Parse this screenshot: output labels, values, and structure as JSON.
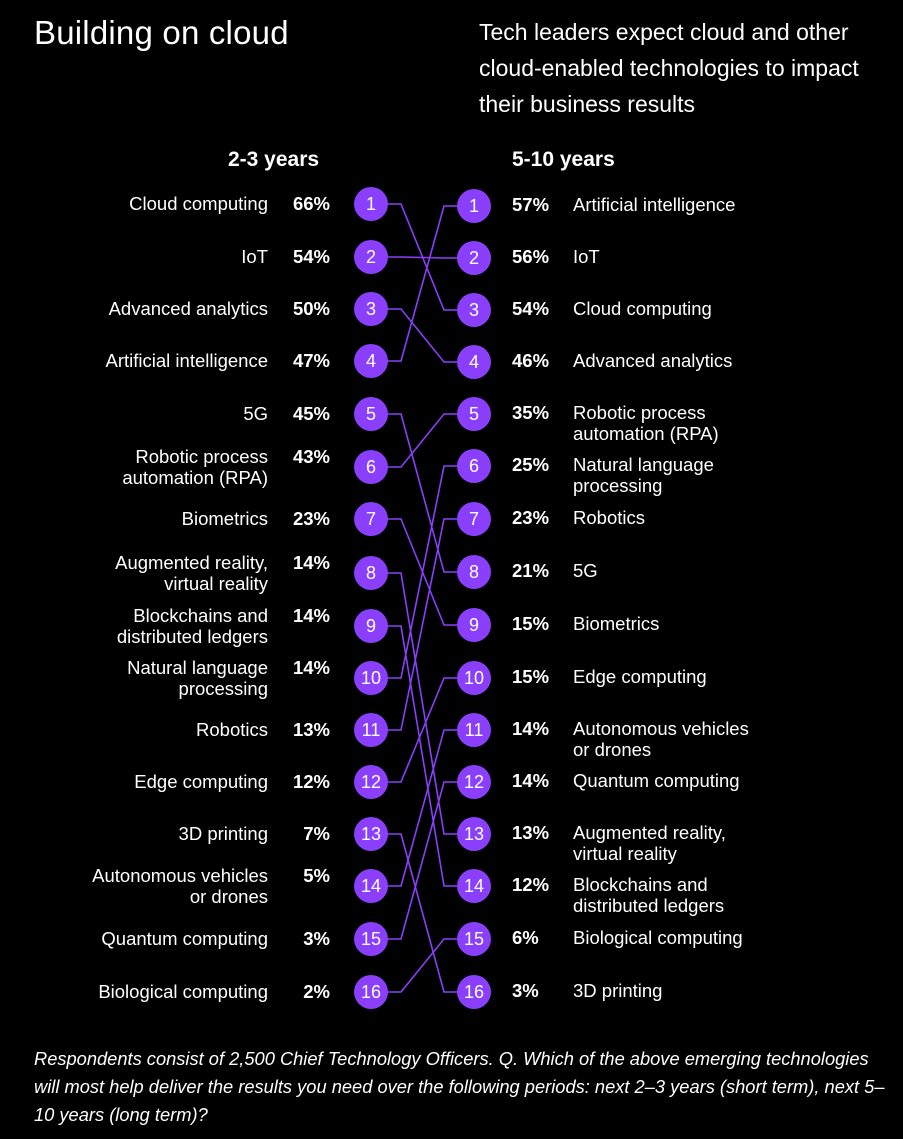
{
  "title": "Building on cloud",
  "subtitle": "Tech leaders expect cloud and other cloud-enabled technologies to impact their business results",
  "footnote": "Respondents consist of 2,500 Chief Technology Officers. Q. Which of the above emerging technologies will most help deliver the results you need over the following periods: next 2–3 years (short term), next 5–10 years (long term)?",
  "colors": {
    "node": "#8a3ffc",
    "line": "#8a3ffc",
    "background": "#000000",
    "text": "#ffffff"
  },
  "chart_data": {
    "type": "slope",
    "periods": [
      "2-3 years",
      "5-10 years"
    ],
    "short_term": [
      {
        "rank": "1",
        "name": "Cloud computing",
        "pct": "66%",
        "value": 66
      },
      {
        "rank": "2",
        "name": "IoT",
        "pct": "54%",
        "value": 54
      },
      {
        "rank": "3",
        "name": "Advanced analytics",
        "pct": "50%",
        "value": 50
      },
      {
        "rank": "4",
        "name": "Artificial intelligence",
        "pct": "47%",
        "value": 47
      },
      {
        "rank": "5",
        "name": "5G",
        "pct": "45%",
        "value": 45
      },
      {
        "rank": "6",
        "name": "Robotic process automation (RPA)",
        "pct": "43%",
        "value": 43
      },
      {
        "rank": "7",
        "name": "Biometrics",
        "pct": "23%",
        "value": 23
      },
      {
        "rank": "8",
        "name": "Augmented reality, virtual reality",
        "pct": "14%",
        "value": 14
      },
      {
        "rank": "9",
        "name": "Blockchains and distributed ledgers",
        "pct": "14%",
        "value": 14
      },
      {
        "rank": "10",
        "name": "Natural language processing",
        "pct": "14%",
        "value": 14
      },
      {
        "rank": "11",
        "name": "Robotics",
        "pct": "13%",
        "value": 13
      },
      {
        "rank": "12",
        "name": "Edge computing",
        "pct": "12%",
        "value": 12
      },
      {
        "rank": "13",
        "name": "3D printing",
        "pct": "7%",
        "value": 7
      },
      {
        "rank": "14",
        "name": "Autonomous vehicles or drones",
        "pct": "5%",
        "value": 5
      },
      {
        "rank": "15",
        "name": "Quantum computing",
        "pct": "3%",
        "value": 3
      },
      {
        "rank": "16",
        "name": "Biological computing",
        "pct": "2%",
        "value": 2
      }
    ],
    "long_term": [
      {
        "rank": "1",
        "name": "Artificial intelligence",
        "pct": "57%",
        "value": 57
      },
      {
        "rank": "2",
        "name": "IoT",
        "pct": "56%",
        "value": 56
      },
      {
        "rank": "3",
        "name": "Cloud computing",
        "pct": "54%",
        "value": 54
      },
      {
        "rank": "4",
        "name": "Advanced analytics",
        "pct": "46%",
        "value": 46
      },
      {
        "rank": "5",
        "name": "Robotic process automation (RPA)",
        "pct": "35%",
        "value": 35
      },
      {
        "rank": "6",
        "name": "Natural language processing",
        "pct": "25%",
        "value": 25
      },
      {
        "rank": "7",
        "name": "Robotics",
        "pct": "23%",
        "value": 23
      },
      {
        "rank": "8",
        "name": "5G",
        "pct": "21%",
        "value": 21
      },
      {
        "rank": "9",
        "name": "Biometrics",
        "pct": "15%",
        "value": 15
      },
      {
        "rank": "10",
        "name": "Edge computing",
        "pct": "15%",
        "value": 15
      },
      {
        "rank": "11",
        "name": "Autonomous vehicles or drones",
        "pct": "14%",
        "value": 14
      },
      {
        "rank": "12",
        "name": "Quantum computing",
        "pct": "14%",
        "value": 14
      },
      {
        "rank": "13",
        "name": "Augmented reality, virtual reality",
        "pct": "13%",
        "value": 13
      },
      {
        "rank": "14",
        "name": "Blockchains and distributed ledgers",
        "pct": "12%",
        "value": 12
      },
      {
        "rank": "15",
        "name": "Biological computing",
        "pct": "6%",
        "value": 6
      },
      {
        "rank": "16",
        "name": "3D printing",
        "pct": "3%",
        "value": 3
      }
    ]
  }
}
